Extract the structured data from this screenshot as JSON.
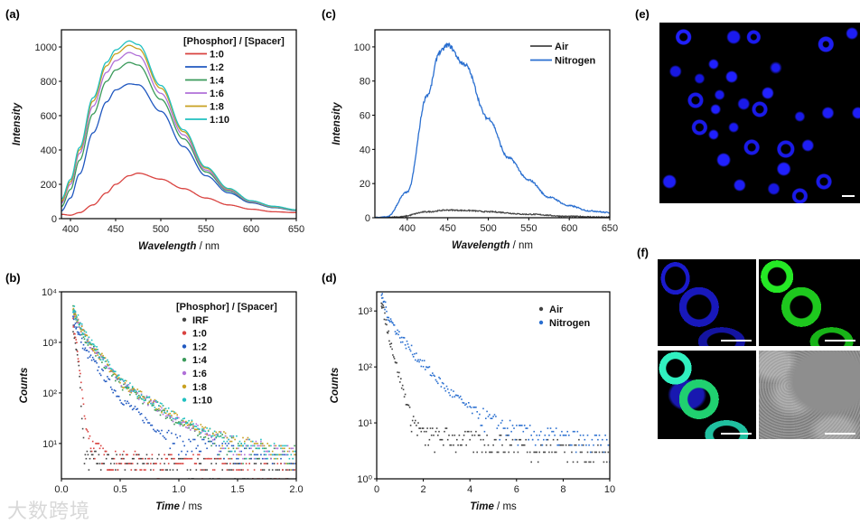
{
  "panel_labels": {
    "a": "(a)",
    "b": "(b)",
    "c": "(c)",
    "d": "(d)",
    "e": "(e)",
    "f": "(f)"
  },
  "watermark": "大数跨境",
  "chart_data": [
    {
      "id": "a",
      "type": "line",
      "xlabel_var": "Wavelength",
      "xlabel_unit": " / nm",
      "ylabel": "Intensity",
      "xlim": [
        390,
        650
      ],
      "ylim": [
        0,
        1100
      ],
      "yscale": "linear",
      "xticks": [
        400,
        450,
        500,
        550,
        600,
        650
      ],
      "xtick_labels": [
        "400",
        "450",
        "500",
        "550",
        "600",
        "650"
      ],
      "yticks": [
        0,
        200,
        400,
        600,
        800,
        1000
      ],
      "ytick_labels": [
        "0",
        "200",
        "400",
        "600",
        "800",
        "1000"
      ],
      "legend_title": "[Phosphor] / [Spacer]",
      "legend_placement": "top-right",
      "x": [
        390,
        400,
        410,
        425,
        440,
        450,
        465,
        475,
        500,
        525,
        550,
        575,
        600,
        625,
        650
      ],
      "series": [
        {
          "name": "1:0",
          "color": "#d9423f",
          "values": [
            25,
            20,
            35,
            80,
            150,
            200,
            250,
            265,
            230,
            175,
            120,
            80,
            55,
            40,
            35
          ]
        },
        {
          "name": "1:2",
          "color": "#2058c0",
          "values": [
            45,
            120,
            260,
            500,
            680,
            750,
            785,
            780,
            625,
            420,
            250,
            150,
            92,
            64,
            47
          ]
        },
        {
          "name": "1:4",
          "color": "#3a9a5a",
          "values": [
            70,
            170,
            340,
            610,
            800,
            866,
            910,
            895,
            695,
            465,
            272,
            160,
            96,
            66,
            49
          ]
        },
        {
          "name": "1:6",
          "color": "#b070d8",
          "values": [
            90,
            200,
            380,
            655,
            852,
            920,
            968,
            950,
            730,
            488,
            283,
            166,
            98,
            68,
            50
          ]
        },
        {
          "name": "1:8",
          "color": "#c8a020",
          "values": [
            100,
            215,
            400,
            685,
            890,
            960,
            1010,
            990,
            760,
            507,
            294,
            172,
            102,
            70,
            51
          ]
        },
        {
          "name": "1:10",
          "color": "#20c0c0",
          "values": [
            114,
            228,
            414,
            704,
            911,
            983,
            1035,
            1014,
            776,
            518,
            300,
            176,
            104,
            72,
            52
          ]
        }
      ]
    },
    {
      "id": "b",
      "type": "scatter",
      "xlabel_var": "Time",
      "xlabel_unit": " / ms",
      "ylabel": "Counts",
      "xlim": [
        0,
        2
      ],
      "ylim": [
        2,
        10000
      ],
      "yscale": "log",
      "xticks": [
        0,
        0.5,
        1,
        1.5,
        2
      ],
      "xtick_labels": [
        "0.0",
        "0.5",
        "1.0",
        "1.5",
        "2.0"
      ],
      "yticks": [
        10,
        100,
        1000,
        10000
      ],
      "ytick_labels": [
        "10¹",
        "10²",
        "10³",
        "10⁴"
      ],
      "legend_title": "[Phosphor] / [Spacer]",
      "legend_placement": "top-right",
      "series": [
        {
          "name": "IRF",
          "color": "#444444",
          "points": [
            [
              0.1,
              2000
            ],
            [
              0.15,
              300
            ],
            [
              0.18,
              20
            ],
            [
              0.2,
              5
            ],
            [
              2,
              3
            ]
          ]
        },
        {
          "name": "1:0",
          "color": "#d9423f",
          "points": [
            [
              0.1,
              2500
            ],
            [
              0.15,
              400
            ],
            [
              0.2,
              30
            ],
            [
              0.25,
              10
            ],
            [
              0.4,
              5
            ],
            [
              2,
              3
            ]
          ]
        },
        {
          "name": "1:2",
          "color": "#2058c0",
          "points": [
            [
              0.1,
              3000
            ],
            [
              0.2,
              700
            ],
            [
              0.5,
              80
            ],
            [
              0.75,
              25
            ],
            [
              1.0,
              10
            ],
            [
              2,
              5
            ]
          ]
        },
        {
          "name": "1:4",
          "color": "#3a9a5a",
          "points": [
            [
              0.1,
              4500
            ],
            [
              0.2,
              1200
            ],
            [
              0.5,
              150
            ],
            [
              1.0,
              25
            ],
            [
              1.5,
              8
            ],
            [
              2,
              6
            ]
          ]
        },
        {
          "name": "1:6",
          "color": "#b070d8",
          "points": [
            [
              0.1,
              4600
            ],
            [
              0.2,
              1300
            ],
            [
              0.5,
              160
            ],
            [
              1.0,
              28
            ],
            [
              1.5,
              9
            ],
            [
              2,
              6
            ]
          ]
        },
        {
          "name": "1:8",
          "color": "#c8a020",
          "points": [
            [
              0.1,
              4700
            ],
            [
              0.2,
              1350
            ],
            [
              0.5,
              170
            ],
            [
              1.0,
              30
            ],
            [
              1.5,
              10
            ],
            [
              2,
              6
            ]
          ]
        },
        {
          "name": "1:10",
          "color": "#20c0c0",
          "points": [
            [
              0.1,
              4800
            ],
            [
              0.2,
              1400
            ],
            [
              0.5,
              175
            ],
            [
              1.0,
              30
            ],
            [
              1.5,
              10
            ],
            [
              2,
              6
            ]
          ]
        }
      ]
    },
    {
      "id": "c",
      "type": "line",
      "xlabel_var": "Wavelength",
      "xlabel_unit": " / nm",
      "ylabel": "Intensity",
      "xlim": [
        360,
        650
      ],
      "ylim": [
        0,
        110
      ],
      "yscale": "linear",
      "xticks": [
        400,
        450,
        500,
        550,
        600,
        650
      ],
      "xtick_labels": [
        "400",
        "450",
        "500",
        "550",
        "600",
        "650"
      ],
      "yticks": [
        0,
        20,
        40,
        60,
        80,
        100
      ],
      "ytick_labels": [
        "0",
        "20",
        "40",
        "60",
        "80",
        "100"
      ],
      "legend_title": "",
      "legend_placement": "top-right",
      "series": [
        {
          "name": "Air",
          "color": "#444444",
          "points": [
            [
              360,
              0
            ],
            [
              390,
              0.5
            ],
            [
              425,
              3.5
            ],
            [
              450,
              4.5
            ],
            [
              475,
              4.2
            ],
            [
              500,
              3.5
            ],
            [
              550,
              2
            ],
            [
              600,
              0.8
            ],
            [
              650,
              0.3
            ]
          ]
        },
        {
          "name": "Nitrogen",
          "color": "#2a6fd0",
          "points": [
            [
              360,
              0
            ],
            [
              375,
              0.5
            ],
            [
              400,
              15
            ],
            [
              425,
              72
            ],
            [
              440,
              97
            ],
            [
              450,
              101
            ],
            [
              470,
              90
            ],
            [
              500,
              58
            ],
            [
              525,
              35
            ],
            [
              550,
              22
            ],
            [
              575,
              12
            ],
            [
              600,
              7
            ],
            [
              625,
              4
            ],
            [
              650,
              3
            ]
          ]
        }
      ]
    },
    {
      "id": "d",
      "type": "scatter",
      "xlabel_var": "Time",
      "xlabel_unit": " / ms",
      "ylabel": "Counts",
      "xlim": [
        0,
        10
      ],
      "ylim": [
        1,
        2200
      ],
      "yscale": "log",
      "xticks": [
        0,
        2,
        4,
        6,
        8,
        10
      ],
      "xtick_labels": [
        "0",
        "2",
        "4",
        "6",
        "8",
        "10"
      ],
      "yticks": [
        1,
        10,
        100,
        1000
      ],
      "ytick_labels": [
        "10⁰",
        "10¹",
        "10²",
        "10³"
      ],
      "legend_title": "",
      "legend_placement": "top-right",
      "series": [
        {
          "name": "Air",
          "color": "#444444",
          "points": [
            [
              0.2,
              1500
            ],
            [
              0.5,
              400
            ],
            [
              1.0,
              60
            ],
            [
              1.5,
              12
            ],
            [
              2,
              6
            ],
            [
              10,
              3
            ]
          ]
        },
        {
          "name": "Nitrogen",
          "color": "#2a6fd0",
          "points": [
            [
              0.2,
              2000
            ],
            [
              0.5,
              800
            ],
            [
              1,
              350
            ],
            [
              2,
              110
            ],
            [
              3,
              40
            ],
            [
              4,
              18
            ],
            [
              5,
              10
            ],
            [
              6,
              7
            ],
            [
              10,
              4
            ]
          ]
        }
      ]
    }
  ]
}
